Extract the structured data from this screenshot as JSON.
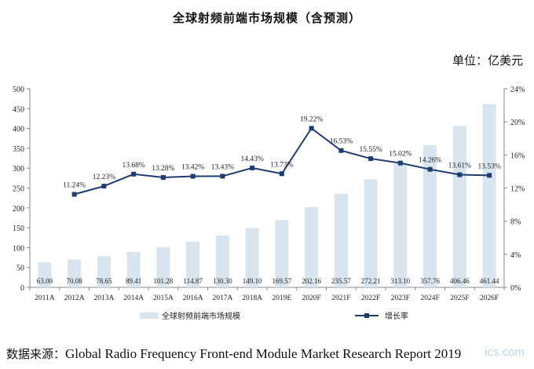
{
  "title": "全球射频前端市场规模（含预测）",
  "unit_label": "单位：亿美元",
  "source": {
    "prefix": "数据来源：",
    "text": "Global Radio Frequency Front-end Module Market Research Report 2019"
  },
  "watermark": "ics.com",
  "chart_data": {
    "type": "bar",
    "categories": [
      "2011A",
      "2012A",
      "2013A",
      "2014A",
      "2015A",
      "2016A",
      "2017A",
      "2018A",
      "2019E",
      "2020F",
      "2021F",
      "2022F",
      "2023F",
      "2024F",
      "2025F",
      "2026F"
    ],
    "series": [
      {
        "name": "全球射频前端市场规模",
        "type": "bar",
        "axis": "left",
        "color": "#d8e4ee",
        "values": [
          63.0,
          70.08,
          78.65,
          89.41,
          101.28,
          114.87,
          130.3,
          149.1,
          169.57,
          202.16,
          235.57,
          272.21,
          313.1,
          357.76,
          406.46,
          461.44
        ],
        "labels": [
          "63.00",
          "70.08",
          "78.65",
          "89.41",
          "101.28",
          "114.87",
          "130.30",
          "149.10",
          "169.57",
          "202.16",
          "235.57",
          "272.21",
          "313.10",
          "357.76",
          "406.46",
          "461.44"
        ]
      },
      {
        "name": "增长率",
        "type": "line",
        "axis": "right",
        "color": "#1f3b6e",
        "values": [
          null,
          11.24,
          12.23,
          13.68,
          13.28,
          13.42,
          13.43,
          14.43,
          13.73,
          19.22,
          16.53,
          15.55,
          15.02,
          14.26,
          13.61,
          13.53
        ],
        "labels": [
          "",
          "11.24%",
          "12.23%",
          "13.68%",
          "13.28%",
          "13.42%",
          "13.43%",
          "14.43%",
          "13.73%",
          "19.22%",
          "16.53%",
          "15.55%",
          "15.02%",
          "14.26%",
          "13.61%",
          "13.53%"
        ]
      }
    ],
    "y_left": {
      "min": 0,
      "max": 500,
      "ticks": [
        "0",
        "50",
        "100",
        "150",
        "200",
        "250",
        "300",
        "350",
        "400",
        "450",
        "500"
      ]
    },
    "y_right": {
      "min": 0,
      "max": 24,
      "ticks": [
        "0%",
        "4%",
        "8%",
        "12%",
        "16%",
        "20%",
        "24%"
      ]
    },
    "grid": false,
    "legend_position": "bottom"
  }
}
